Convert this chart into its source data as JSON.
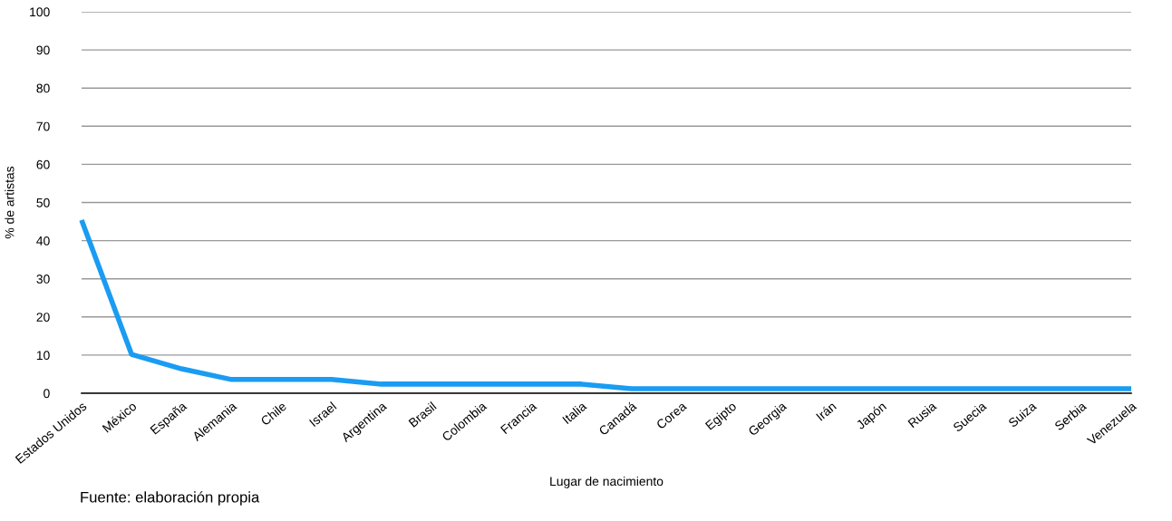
{
  "chart_data": {
    "type": "line",
    "xlabel": "Lugar de nacimiento",
    "ylabel": "% de artistas",
    "categories": [
      "Estados Unidos",
      "México",
      "España",
      "Alemania",
      "Chile",
      "Israel",
      "Argentina",
      "Brasil",
      "Colombia",
      "Francia",
      "Italia",
      "Canadá",
      "Corea",
      "Egipto",
      "Georgia",
      "Irán",
      "Japón",
      "Rusia",
      "Suecia",
      "Suiza",
      "Serbia",
      "Venezuela"
    ],
    "series": [
      {
        "color": "#1a9cf2",
        "values": [
          45.4,
          10.2,
          6.4,
          3.6,
          3.6,
          3.6,
          2.4,
          2.4,
          2.4,
          2.4,
          2.4,
          1.2,
          1.2,
          1.2,
          1.2,
          1.2,
          1.2,
          1.2,
          1.2,
          1.2,
          1.2,
          1.2
        ]
      }
    ],
    "ylim": [
      0,
      100
    ],
    "yticks": [
      0,
      10,
      20,
      30,
      40,
      50,
      60,
      70,
      80,
      90,
      100
    ],
    "grid": "y",
    "marker": "none",
    "line_style": "solid",
    "annotations": [
      "Fuente: elaboración propia"
    ]
  }
}
